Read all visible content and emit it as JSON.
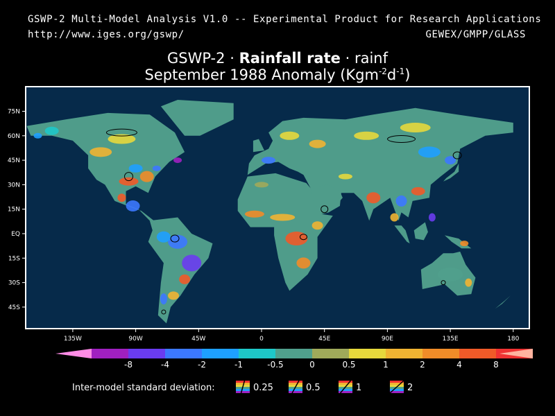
{
  "header": {
    "product_line": "GSWP-2 Multi-Model Analysis V1.0 -- Experimental Product for Research Applications",
    "url": "http://www.iges.org/gswp/",
    "projects": "GEWEX/GMPP/GLASS"
  },
  "title": {
    "dataset": "GSWP-2",
    "separator": "·",
    "variable_long": "Rainfall rate",
    "variable_short": "rainf",
    "subtitle_prefix": "September 1988 Anomaly (Kgm",
    "unit_exp1": "-2",
    "unit_mid": "d",
    "unit_exp2": "-1",
    "subtitle_suffix": ")"
  },
  "map": {
    "type": "heatmap",
    "background_color": "#062a4a",
    "frame_color": "#ffffff",
    "lat_ticks": [
      "75N",
      "60N",
      "45N",
      "30N",
      "15N",
      "EQ",
      "15S",
      "30S",
      "45S"
    ],
    "lon_ticks": [
      "135W",
      "90W",
      "45W",
      "0",
      "45E",
      "90E",
      "135E",
      "180"
    ],
    "lon_range": [
      -180,
      180
    ],
    "lat_range": [
      -60,
      90
    ]
  },
  "chart_data": {
    "type": "heatmap",
    "title": "Rainfall rate September 1988 Anomaly",
    "colorbar": {
      "ticks": [
        "-8",
        "-4",
        "-2",
        "-1",
        "-0.5",
        "0",
        "0.5",
        "1",
        "2",
        "4",
        "8"
      ],
      "colors": [
        "#ff8ce6",
        "#a020c0",
        "#6a3cf0",
        "#3c78ff",
        "#1ea0ff",
        "#1ec8c8",
        "#50a08c",
        "#a0aa5a",
        "#e6d83c",
        "#f0b432",
        "#f08c28",
        "#f05a28",
        "#f03232",
        "#ffb4a0"
      ]
    }
  },
  "legend": {
    "label": "Inter-model standard deviation:",
    "items": [
      "0.25",
      "0.5",
      "1",
      "2"
    ]
  }
}
